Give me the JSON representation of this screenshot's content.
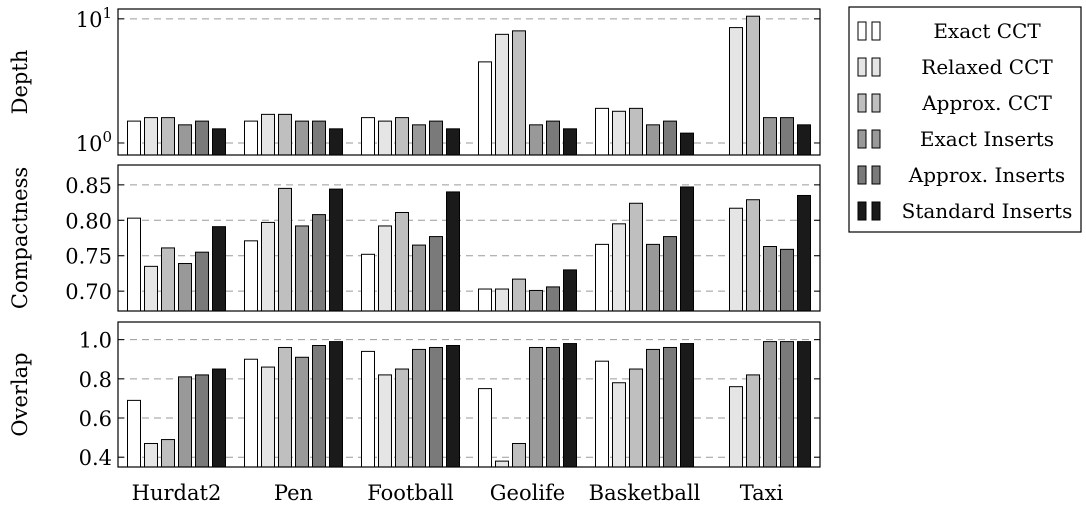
{
  "chart_data": {
    "type": "bar",
    "categories": [
      "Hurdat2",
      "Pen",
      "Football",
      "Geolife",
      "Basketball",
      "Taxi"
    ],
    "legend_position": "right",
    "legend": [
      {
        "name": "Exact CCT",
        "color": "#ffffff"
      },
      {
        "name": "Relaxed CCT",
        "color": "#e5e5e5"
      },
      {
        "name": "Approx. CCT",
        "color": "#bfbfbf"
      },
      {
        "name": "Exact Inserts",
        "color": "#999999"
      },
      {
        "name": "Approx. Inserts",
        "color": "#7a7a7a"
      },
      {
        "name": "Standard Inserts",
        "color": "#1a1a1a"
      }
    ],
    "panels": [
      {
        "ylabel": "Depth",
        "yscale": "log",
        "ylim": [
          0.8,
          12
        ],
        "ticks": [
          {
            "value": 1,
            "base": "10",
            "exp": "0"
          },
          {
            "value": 10,
            "base": "10",
            "exp": "1"
          }
        ],
        "grid": true,
        "series": [
          {
            "name": "Exact CCT",
            "values": [
              1.5,
              1.5,
              1.6,
              4.5,
              1.9,
              0.8
            ]
          },
          {
            "name": "Relaxed CCT",
            "values": [
              1.6,
              1.7,
              1.5,
              7.5,
              1.8,
              8.5
            ]
          },
          {
            "name": "Approx. CCT",
            "values": [
              1.6,
              1.7,
              1.6,
              8.0,
              1.9,
              10.5
            ]
          },
          {
            "name": "Exact Inserts",
            "values": [
              1.4,
              1.5,
              1.4,
              1.4,
              1.4,
              1.6
            ]
          },
          {
            "name": "Approx. Inserts",
            "values": [
              1.5,
              1.5,
              1.5,
              1.5,
              1.5,
              1.6
            ]
          },
          {
            "name": "Standard Inserts",
            "values": [
              1.3,
              1.3,
              1.3,
              1.3,
              1.2,
              1.4
            ]
          }
        ]
      },
      {
        "ylabel": "Compactness",
        "yscale": "linear",
        "ylim": [
          0.672,
          0.878
        ],
        "ticks": [
          {
            "value": 0.7,
            "label": "0.70"
          },
          {
            "value": 0.75,
            "label": "0.75"
          },
          {
            "value": 0.8,
            "label": "0.80"
          },
          {
            "value": 0.85,
            "label": "0.85"
          }
        ],
        "grid": true,
        "series": [
          {
            "name": "Exact CCT",
            "values": [
              0.803,
              0.771,
              0.752,
              0.703,
              0.766,
              null
            ]
          },
          {
            "name": "Relaxed CCT",
            "values": [
              0.735,
              0.797,
              0.792,
              0.703,
              0.795,
              0.817
            ]
          },
          {
            "name": "Approx. CCT",
            "values": [
              0.761,
              0.845,
              0.811,
              0.717,
              0.824,
              0.829
            ]
          },
          {
            "name": "Exact Inserts",
            "values": [
              0.739,
              0.792,
              0.765,
              0.701,
              0.766,
              0.763
            ]
          },
          {
            "name": "Approx. Inserts",
            "values": [
              0.755,
              0.808,
              0.777,
              0.706,
              0.777,
              0.759
            ]
          },
          {
            "name": "Standard Inserts",
            "values": [
              0.791,
              0.844,
              0.84,
              0.73,
              0.847,
              0.835
            ]
          }
        ]
      },
      {
        "ylabel": "Overlap",
        "yscale": "linear",
        "ylim": [
          0.35,
          1.09
        ],
        "ticks": [
          {
            "value": 0.4,
            "label": "0.4"
          },
          {
            "value": 0.6,
            "label": "0.6"
          },
          {
            "value": 0.8,
            "label": "0.8"
          },
          {
            "value": 1.0,
            "label": "1.0"
          }
        ],
        "grid": true,
        "series": [
          {
            "name": "Exact CCT",
            "values": [
              0.69,
              0.9,
              0.94,
              0.75,
              0.89,
              0.35
            ]
          },
          {
            "name": "Relaxed CCT",
            "values": [
              0.47,
              0.86,
              0.82,
              0.38,
              0.78,
              0.76
            ]
          },
          {
            "name": "Approx. CCT",
            "values": [
              0.49,
              0.96,
              0.85,
              0.47,
              0.85,
              0.82
            ]
          },
          {
            "name": "Exact Inserts",
            "values": [
              0.81,
              0.91,
              0.95,
              0.96,
              0.95,
              0.99
            ]
          },
          {
            "name": "Approx. Inserts",
            "values": [
              0.82,
              0.97,
              0.96,
              0.96,
              0.96,
              0.99
            ]
          },
          {
            "name": "Standard Inserts",
            "values": [
              0.85,
              0.99,
              0.97,
              0.98,
              0.98,
              0.99
            ]
          }
        ]
      }
    ]
  }
}
